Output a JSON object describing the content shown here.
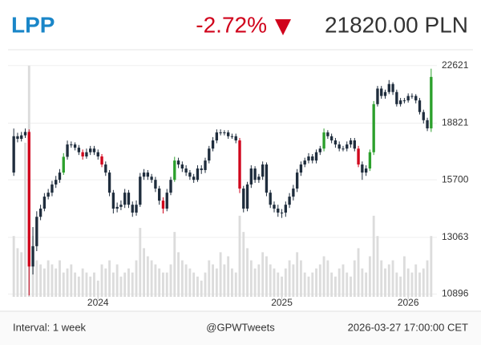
{
  "header": {
    "ticker": "LPP",
    "change": "-2.72%",
    "price": "21820.00 PLN"
  },
  "chart_data": {
    "type": "candlestick",
    "open": [
      16070,
      18050,
      17900,
      18100,
      18300,
      11900,
      12700,
      13950,
      14320,
      14880,
      15070,
      15470,
      15700,
      16070,
      16900,
      17580,
      17580,
      17400,
      17150,
      16920,
      17150,
      17350,
      17150,
      16920,
      16490,
      16070,
      15070,
      14320,
      14400,
      14500,
      15070,
      14500,
      14140,
      14500,
      15860,
      16070,
      15860,
      15700,
      15270,
      14690,
      14320,
      15070,
      15700,
      16700,
      16490,
      16280,
      16070,
      15860,
      15700,
      16280,
      16200,
      16700,
      17350,
      17810,
      18270,
      18270,
      18270,
      18050,
      18050,
      17810,
      15270,
      14320,
      15470,
      16280,
      15700,
      15860,
      16490,
      15070,
      14500,
      14320,
      14140,
      14140,
      14500,
      14880,
      15270,
      16070,
      16490,
      16700,
      16920,
      16700,
      17150,
      17350,
      18270,
      18050,
      17810,
      17580,
      17350,
      17350,
      17580,
      17810,
      17350,
      16490,
      16070,
      16280,
      17150,
      20000,
      21020,
      20530,
      20790,
      21330,
      20790,
      20000,
      20240,
      20240,
      20530,
      20530,
      20240,
      19500,
      19000,
      18510
    ],
    "high": [
      18500,
      18250,
      18300,
      18500,
      18450,
      13500,
      14200,
      14500,
      15050,
      15250,
      15650,
      15900,
      16250,
      17100,
      17800,
      17750,
      17700,
      17550,
      17300,
      17350,
      17500,
      17500,
      17300,
      17050,
      16650,
      16200,
      15200,
      14600,
      14700,
      15250,
      15200,
      14650,
      14700,
      16050,
      16250,
      16200,
      16000,
      15850,
      15400,
      14850,
      15250,
      15850,
      16900,
      16850,
      16650,
      16450,
      16200,
      16000,
      16450,
      16450,
      16850,
      17500,
      18000,
      18450,
      18450,
      18400,
      18400,
      18200,
      18200,
      17950,
      15400,
      15600,
      16450,
      16400,
      16000,
      16650,
      16600,
      15200,
      14650,
      14500,
      14300,
      14650,
      15050,
      15450,
      16250,
      16650,
      16850,
      17100,
      17050,
      17300,
      17500,
      18500,
      18400,
      18200,
      17950,
      17750,
      17500,
      17750,
      17950,
      17950,
      17500,
      16650,
      16450,
      17300,
      20200,
      21200,
      21200,
      20950,
      21600,
      21450,
      20950,
      20400,
      20400,
      20700,
      20700,
      20650,
      20400,
      19650,
      19150,
      22400
    ],
    "low": [
      15900,
      17700,
      17750,
      17950,
      10850,
      11600,
      12500,
      13800,
      14200,
      14750,
      14900,
      15300,
      15550,
      15950,
      16750,
      17400,
      17250,
      17000,
      16750,
      16800,
      17000,
      17000,
      16750,
      16350,
      15900,
      14900,
      14100,
      14150,
      14250,
      14350,
      14350,
      13950,
      14000,
      14400,
      15700,
      15700,
      15550,
      15100,
      14500,
      14100,
      14200,
      14950,
      15600,
      16300,
      16100,
      15900,
      15700,
      15550,
      15600,
      16000,
      16050,
      16550,
      17200,
      17650,
      18100,
      18100,
      17900,
      17900,
      17650,
      15050,
      14150,
      14200,
      15300,
      15550,
      15550,
      15700,
      14900,
      14350,
      14150,
      13950,
      13900,
      13950,
      14350,
      14700,
      15100,
      15900,
      16350,
      16550,
      16550,
      16550,
      17000,
      17200,
      17900,
      17650,
      17400,
      17200,
      17200,
      17200,
      17400,
      17200,
      16350,
      15700,
      15900,
      16150,
      17000,
      19850,
      20350,
      20350,
      20650,
      20600,
      19850,
      19850,
      20050,
      20100,
      20350,
      20050,
      19350,
      18800,
      18350,
      18300
    ],
    "close": [
      18050,
      17900,
      18100,
      18300,
      11900,
      12700,
      13950,
      14320,
      14880,
      15070,
      15470,
      15700,
      16070,
      16900,
      17580,
      17580,
      17400,
      17150,
      16920,
      17150,
      17350,
      17150,
      16920,
      16490,
      16070,
      15070,
      14320,
      14400,
      14500,
      15070,
      14500,
      14140,
      14500,
      15860,
      16070,
      15860,
      15700,
      15270,
      14690,
      14320,
      15070,
      15700,
      16700,
      16490,
      16280,
      16070,
      15860,
      15700,
      16280,
      16200,
      16700,
      17350,
      17810,
      18270,
      18270,
      18270,
      18050,
      18050,
      17810,
      15270,
      14320,
      15470,
      16280,
      15700,
      15860,
      16490,
      15070,
      14500,
      14320,
      14140,
      14140,
      14500,
      14880,
      15270,
      16070,
      16490,
      16700,
      16920,
      16700,
      17150,
      17350,
      18270,
      18050,
      17810,
      17580,
      17350,
      17350,
      17580,
      17810,
      17350,
      16490,
      16070,
      16280,
      17150,
      20000,
      21020,
      20530,
      20790,
      21330,
      20790,
      20000,
      20240,
      20240,
      20530,
      20530,
      20240,
      19500,
      19000,
      18510,
      21820
    ],
    "volume": [
      75,
      60,
      55,
      190,
      285,
      75,
      45,
      40,
      35,
      45,
      40,
      35,
      45,
      30,
      35,
      40,
      30,
      25,
      35,
      30,
      25,
      30,
      20,
      40,
      35,
      45,
      30,
      40,
      25,
      30,
      35,
      30,
      45,
      85,
      60,
      50,
      45,
      40,
      35,
      30,
      30,
      40,
      80,
      55,
      45,
      40,
      35,
      30,
      25,
      20,
      30,
      45,
      40,
      35,
      55,
      40,
      50,
      35,
      30,
      100,
      80,
      60,
      45,
      35,
      40,
      55,
      50,
      40,
      35,
      30,
      25,
      35,
      45,
      40,
      55,
      45,
      30,
      25,
      30,
      35,
      40,
      50,
      45,
      30,
      25,
      35,
      40,
      30,
      25,
      45,
      60,
      35,
      30,
      50,
      100,
      75,
      45,
      35,
      40,
      45,
      30,
      25,
      50,
      35,
      30,
      40,
      30,
      35,
      45,
      75
    ],
    "colors": [
      "#1f2d3d",
      "#1f2d3d",
      "#1f2d3d",
      "#1f2d3d",
      "#d0021b",
      "#1f2d3d",
      "#1f2d3d",
      "#1f2d3d",
      "#1f2d3d",
      "#1f2d3d",
      "#1f2d3d",
      "#1f2d3d",
      "#1f2d3d",
      "#2ca02c",
      "#1f2d3d",
      "#1f2d3d",
      "#1f2d3d",
      "#1f2d3d",
      "#d0021b",
      "#1f2d3d",
      "#1f2d3d",
      "#1f2d3d",
      "#1f2d3d",
      "#d0021b",
      "#1f2d3d",
      "#1f2d3d",
      "#1f2d3d",
      "#1f2d3d",
      "#1f2d3d",
      "#1f2d3d",
      "#1f2d3d",
      "#1f2d3d",
      "#1f2d3d",
      "#1f2d3d",
      "#1f2d3d",
      "#1f2d3d",
      "#1f2d3d",
      "#1f2d3d",
      "#1f2d3d",
      "#d0021b",
      "#1f2d3d",
      "#1f2d3d",
      "#2ca02c",
      "#1f2d3d",
      "#1f2d3d",
      "#1f2d3d",
      "#1f2d3d",
      "#1f2d3d",
      "#1f2d3d",
      "#1f2d3d",
      "#1f2d3d",
      "#1f2d3d",
      "#1f2d3d",
      "#1f2d3d",
      "#1f2d3d",
      "#1f2d3d",
      "#1f2d3d",
      "#1f2d3d",
      "#1f2d3d",
      "#d0021b",
      "#1f2d3d",
      "#1f2d3d",
      "#1f2d3d",
      "#1f2d3d",
      "#1f2d3d",
      "#1f2d3d",
      "#1f2d3d",
      "#1f2d3d",
      "#1f2d3d",
      "#1f2d3d",
      "#1f2d3d",
      "#1f2d3d",
      "#1f2d3d",
      "#1f2d3d",
      "#1f2d3d",
      "#1f2d3d",
      "#1f2d3d",
      "#1f2d3d",
      "#1f2d3d",
      "#1f2d3d",
      "#1f2d3d",
      "#2ca02c",
      "#1f2d3d",
      "#1f2d3d",
      "#1f2d3d",
      "#1f2d3d",
      "#1f2d3d",
      "#1f2d3d",
      "#1f2d3d",
      "#1f2d3d",
      "#d0021b",
      "#1f2d3d",
      "#1f2d3d",
      "#2ca02c",
      "#2ca02c",
      "#1f2d3d",
      "#1f2d3d",
      "#1f2d3d",
      "#1f2d3d",
      "#1f2d3d",
      "#1f2d3d",
      "#1f2d3d",
      "#1f2d3d",
      "#1f2d3d",
      "#1f2d3d",
      "#1f2d3d",
      "#1f2d3d",
      "#1f2d3d",
      "#1f2d3d",
      "#2ca02c"
    ],
    "volume_color": "#dcdcdc",
    "xlim": [
      -1.5,
      110.5
    ],
    "xticks": [
      {
        "value": 22,
        "label": "2024"
      },
      {
        "value": 70,
        "label": "2025"
      },
      {
        "value": 103,
        "label": "2026"
      }
    ],
    "ylim": [
      10800,
      23800
    ],
    "log_y": true,
    "yticks": [
      10896,
      13063,
      15700,
      18821,
      22621
    ],
    "grid": true
  },
  "footer": {
    "interval": "Interval: 1 week",
    "source": "@GPWTweets",
    "timestamp": "2026-03-27 17:00:00 CET"
  }
}
